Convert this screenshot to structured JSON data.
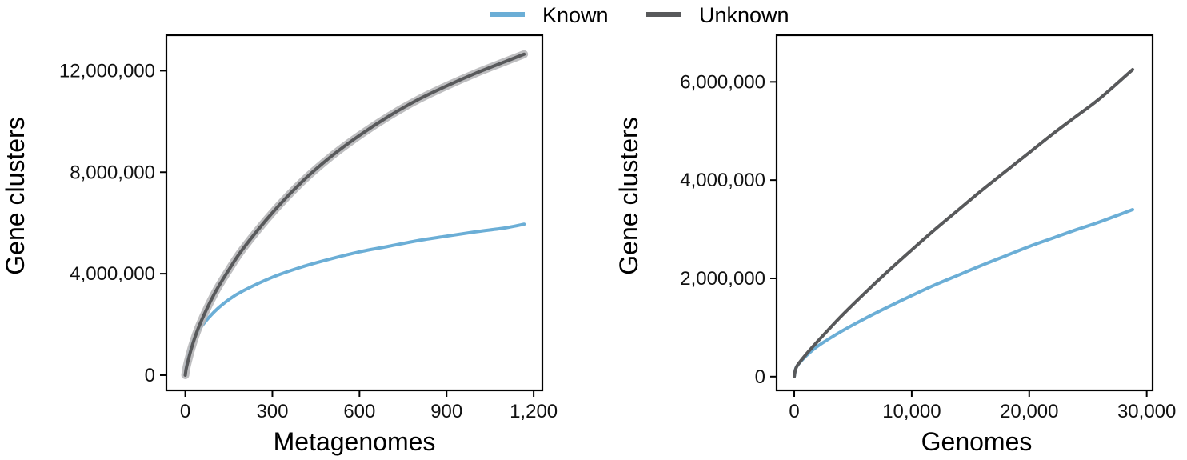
{
  "legend": {
    "placement": "top-center",
    "items": [
      {
        "label": "Known",
        "color": "#6BAED6"
      },
      {
        "label": "Unknown",
        "color": "#58595B"
      }
    ]
  },
  "chart_data": [
    {
      "type": "line",
      "title": "",
      "xlabel": "Metagenomes",
      "ylabel": "Gene clusters",
      "xlim": [
        -65,
        1230
      ],
      "ylim": [
        -600000,
        13400000
      ],
      "xticks": [
        0,
        300,
        600,
        900,
        1200
      ],
      "xtick_labels": [
        "0",
        "300",
        "600",
        "900",
        "1,200"
      ],
      "yticks": [
        0,
        4000000,
        8000000,
        12000000
      ],
      "ytick_labels": [
        "0",
        "4,000,000",
        "8,000,000",
        "12,000,000"
      ],
      "grid": false,
      "series": [
        {
          "name": "Known",
          "color": "#6BAED6",
          "x": [
            0,
            5,
            25,
            50,
            100,
            150,
            200,
            300,
            400,
            500,
            600,
            700,
            800,
            900,
            1000,
            1100,
            1167
          ],
          "y": [
            0,
            480000,
            1300000,
            1830000,
            2500000,
            2980000,
            3330000,
            3860000,
            4260000,
            4580000,
            4860000,
            5080000,
            5300000,
            5480000,
            5650000,
            5800000,
            5950000
          ]
        },
        {
          "name": "Unknown",
          "color": "#58595B",
          "band": true,
          "x": [
            0,
            5,
            25,
            50,
            100,
            150,
            200,
            300,
            400,
            500,
            600,
            700,
            800,
            900,
            1000,
            1100,
            1167
          ],
          "y": [
            0,
            350000,
            1200000,
            2000000,
            3200000,
            4150000,
            5000000,
            6400000,
            7600000,
            8600000,
            9450000,
            10200000,
            10850000,
            11400000,
            11900000,
            12350000,
            12650000
          ]
        }
      ]
    },
    {
      "type": "line",
      "title": "",
      "xlabel": "Genomes",
      "ylabel": "Gene clusters",
      "xlim": [
        -1500,
        30500
      ],
      "ylim": [
        -280000,
        6950000
      ],
      "xticks": [
        0,
        10000,
        20000,
        30000
      ],
      "xtick_labels": [
        "0",
        "10,000",
        "20,000",
        "30,000"
      ],
      "yticks": [
        0,
        2000000,
        4000000,
        6000000
      ],
      "ytick_labels": [
        "0",
        "2,000,000",
        "4,000,000",
        "6,000,000"
      ],
      "grid": false,
      "series": [
        {
          "name": "Known",
          "color": "#6BAED6",
          "x": [
            0,
            200,
            1000,
            2000,
            4000,
            6000,
            8000,
            10000,
            12000,
            14000,
            16000,
            18000,
            20000,
            22000,
            24000,
            26000,
            28800
          ],
          "y": [
            0,
            200000,
            420000,
            620000,
            920000,
            1180000,
            1420000,
            1650000,
            1870000,
            2070000,
            2270000,
            2460000,
            2650000,
            2820000,
            2990000,
            3150000,
            3400000
          ]
        },
        {
          "name": "Unknown",
          "color": "#58595B",
          "x": [
            0,
            200,
            1000,
            2000,
            4000,
            6000,
            8000,
            10000,
            12000,
            14000,
            16000,
            18000,
            20000,
            22000,
            24000,
            26000,
            28800
          ],
          "y": [
            0,
            200000,
            450000,
            720000,
            1230000,
            1700000,
            2150000,
            2580000,
            3000000,
            3400000,
            3800000,
            4180000,
            4560000,
            4940000,
            5300000,
            5660000,
            6250000
          ]
        }
      ]
    }
  ]
}
